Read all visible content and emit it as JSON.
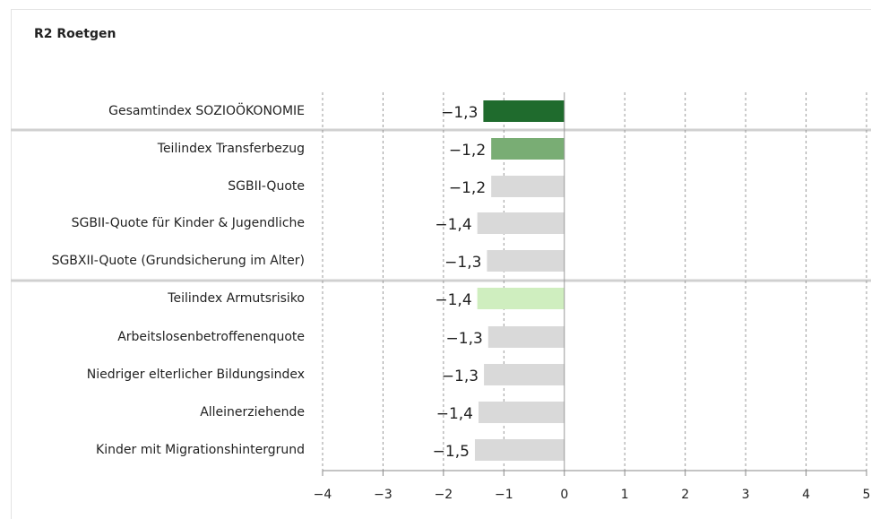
{
  "chart_data": {
    "type": "barh",
    "title": "R2 Roetgen",
    "categories": [
      "Gesamtindex SOZIOÖKONOMIE",
      "Teilindex Transferbezug",
      "SGBII-Quote",
      "SGBII-Quote für Kinder & Jugendliche",
      "SGBXII-Quote (Grundsicherung im Alter)",
      "Teilindex Armutsrisiko",
      "Arbeitslosenbetroffenenquote",
      "Niedriger elterlicher Bildungsindex",
      "Alleinerziehende",
      "Kinder mit Migrationshintergrund"
    ],
    "values": [
      -1.34,
      -1.21,
      -1.21,
      -1.44,
      -1.28,
      -1.44,
      -1.26,
      -1.33,
      -1.42,
      -1.48
    ],
    "value_labels": [
      "−1,3",
      "−1,2",
      "−1,2",
      "−1,4",
      "−1,3",
      "−1,4",
      "−1,3",
      "−1,3",
      "−1,4",
      "−1,5"
    ],
    "colors": [
      "#1f6b2d",
      "#79ad74",
      "#d9d9d9",
      "#d9d9d9",
      "#d9d9d9",
      "#cfeebf",
      "#d9d9d9",
      "#d9d9d9",
      "#d9d9d9",
      "#d9d9d9"
    ],
    "xlim": [
      -4,
      5
    ],
    "xticks": [
      {
        "value": -4,
        "label": "−4"
      },
      {
        "value": -3,
        "label": "−3"
      },
      {
        "value": -2,
        "label": "−2"
      },
      {
        "value": -1,
        "label": "−1"
      },
      0,
      1,
      2,
      3,
      4,
      5
    ],
    "grid": true
  }
}
